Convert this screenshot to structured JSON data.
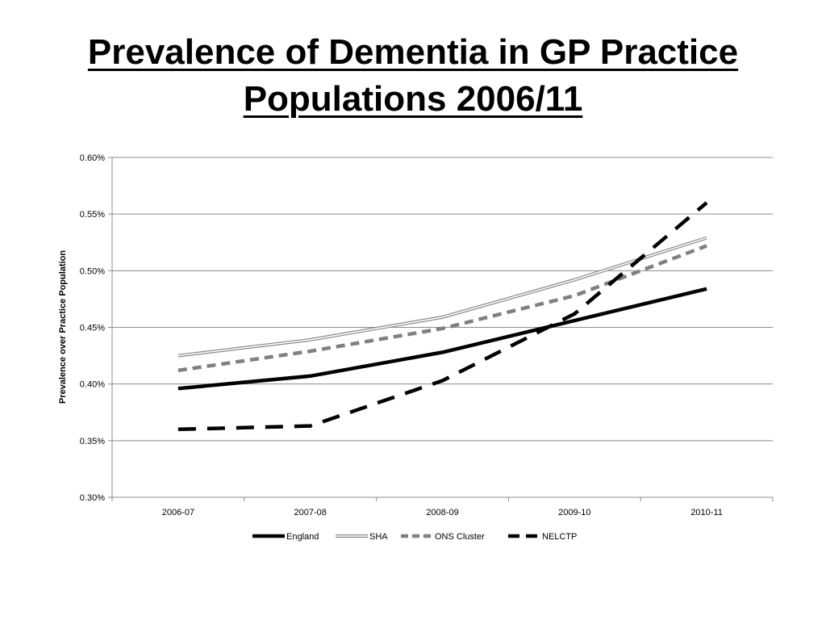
{
  "slide": {
    "title_line1": "Prevalence of Dementia in GP Practice",
    "title_line2": "Populations 2006/11"
  },
  "chart_data": {
    "type": "line",
    "title": "Prevalence of Dementia in GP Practice Populations 2006/11",
    "xlabel": "",
    "ylabel": "Prevalence over Practice Population",
    "categories": [
      "2006-07",
      "2007-08",
      "2008-09",
      "2009-10",
      "2010-11"
    ],
    "ylim": [
      0.3,
      0.6
    ],
    "yticks": [
      0.3,
      0.35,
      0.4,
      0.45,
      0.5,
      0.55,
      0.6
    ],
    "ytick_labels": [
      "0.30%",
      "0.35%",
      "0.40%",
      "0.45%",
      "0.50%",
      "0.55%",
      "0.60%"
    ],
    "grid": true,
    "legend_position": "bottom",
    "series": [
      {
        "name": "England",
        "values": [
          0.396,
          0.407,
          0.428,
          0.456,
          0.484
        ],
        "color": "#000000",
        "style": "solid-thick"
      },
      {
        "name": "SHA",
        "values": [
          0.425,
          0.439,
          0.459,
          0.492,
          0.529
        ],
        "color": "#888888",
        "style": "double"
      },
      {
        "name": "ONS Cluster",
        "values": [
          0.412,
          0.429,
          0.449,
          0.478,
          0.522
        ],
        "color": "#808080",
        "style": "dashed"
      },
      {
        "name": "NELCTP",
        "values": [
          0.36,
          0.363,
          0.403,
          0.462,
          0.56
        ],
        "color": "#000000",
        "style": "dashed-long"
      }
    ]
  }
}
